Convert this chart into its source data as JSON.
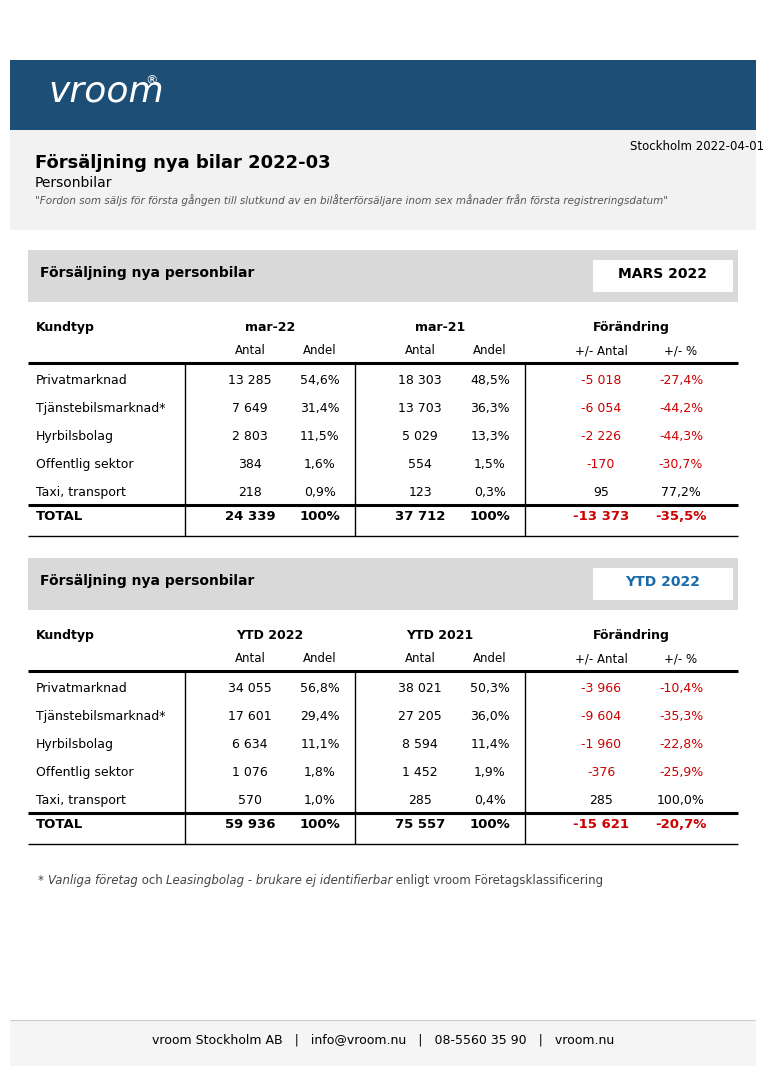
{
  "title": "Försäljning nya bilar 2022-03",
  "subtitle": "Personbilar",
  "footnote_italic": "\"Fordon som säljs för första gången till slutkund av en bilåterförsäljare inom sex månader från första registreringsdatum\"",
  "date": "Stockholm 2022-04-01",
  "header_bg": "#1d4f76",
  "light_bg": "#d9d9d9",
  "info_bg": "#f2f2f2",
  "white": "#ffffff",
  "black": "#000000",
  "red": "#cc0000",
  "blue_ytd": "#1a6aaa",
  "gray_text": "#444444",
  "table1_header_label": "Försäljning nya personbilar",
  "table1_period_label": "MARS 2022",
  "table1_col1_header": "mar-22",
  "table1_col2_header": "mar-21",
  "table1_col3_header": "Förändring",
  "table1_rows": [
    [
      "Privatmarknad",
      "13 285",
      "54,6%",
      "18 303",
      "48,5%",
      "-5 018",
      "-27,4%"
    ],
    [
      "Tjänstebilsmarknad*",
      "7 649",
      "31,4%",
      "13 703",
      "36,3%",
      "-6 054",
      "-44,2%"
    ],
    [
      "Hyrbilsbolag",
      "2 803",
      "11,5%",
      "5 029",
      "13,3%",
      "-2 226",
      "-44,3%"
    ],
    [
      "Offentlig sektor",
      "384",
      "1,6%",
      "554",
      "1,5%",
      "-170",
      "-30,7%"
    ],
    [
      "Taxi, transport",
      "218",
      "0,9%",
      "123",
      "0,3%",
      "95",
      "77,2%"
    ]
  ],
  "table1_total": [
    "TOTAL",
    "24 339",
    "100%",
    "37 712",
    "100%",
    "-13 373",
    "-35,5%"
  ],
  "table1_red_rows": [
    0,
    1,
    2,
    3
  ],
  "table2_header_label": "Försäljning nya personbilar",
  "table2_period_label": "YTD 2022",
  "table2_col1_header": "YTD 2022",
  "table2_col2_header": "YTD 2021",
  "table2_col3_header": "Förändring",
  "table2_rows": [
    [
      "Privatmarknad",
      "34 055",
      "56,8%",
      "38 021",
      "50,3%",
      "-3 966",
      "-10,4%"
    ],
    [
      "Tjänstebilsmarknad*",
      "17 601",
      "29,4%",
      "27 205",
      "36,0%",
      "-9 604",
      "-35,3%"
    ],
    [
      "Hyrbilsbolag",
      "6 634",
      "11,1%",
      "8 594",
      "11,4%",
      "-1 960",
      "-22,8%"
    ],
    [
      "Offentlig sektor",
      "1 076",
      "1,8%",
      "1 452",
      "1,9%",
      "-376",
      "-25,9%"
    ],
    [
      "Taxi, transport",
      "570",
      "1,0%",
      "285",
      "0,4%",
      "285",
      "100,0%"
    ]
  ],
  "table2_total": [
    "TOTAL",
    "59 936",
    "100%",
    "75 557",
    "100%",
    "-15 621",
    "-20,7%"
  ],
  "table2_red_rows": [
    0,
    1,
    2,
    3
  ],
  "footnote_parts": [
    {
      "text": "* ",
      "bold": false,
      "italic": false
    },
    {
      "text": "Vanliga företag",
      "bold": false,
      "italic": true
    },
    {
      "text": " och ",
      "bold": false,
      "italic": false
    },
    {
      "text": "Leasingbolag - brukare ej identifierbar",
      "bold": false,
      "italic": true
    },
    {
      "text": " enligt vroom Företagsklassificering",
      "bold": false,
      "italic": false
    }
  ],
  "footer": "vroom Stockholm AB   |   info@vroom.nu   |   08-5560 35 90   |   vroom.nu"
}
